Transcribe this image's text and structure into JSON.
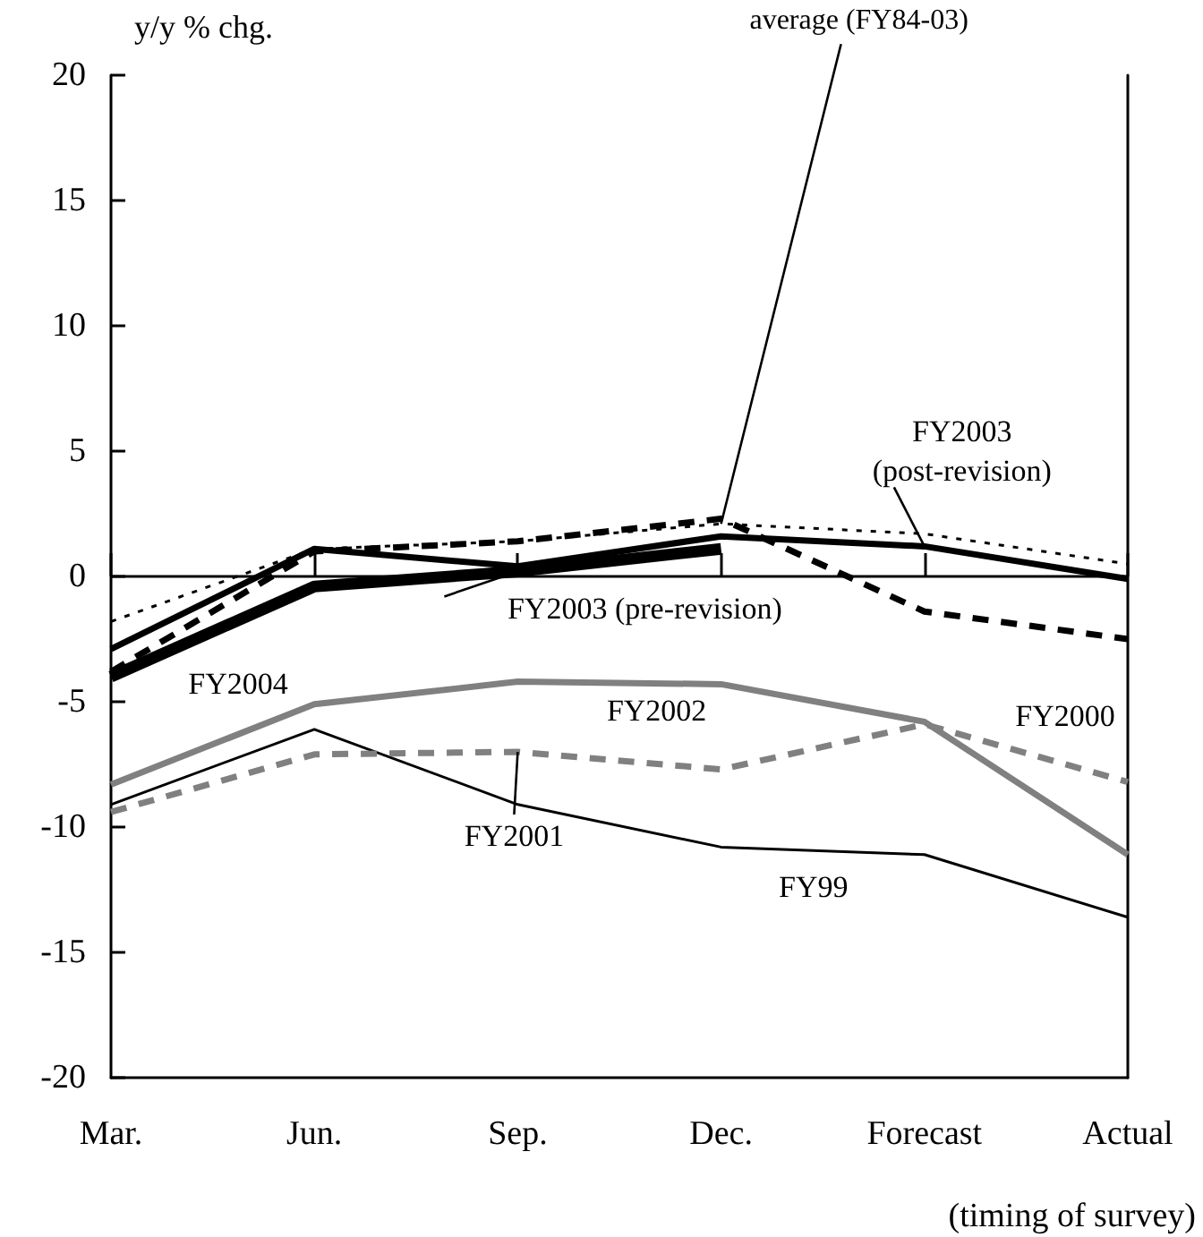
{
  "chart_data": {
    "type": "line",
    "ylabel": "y/y % chg.",
    "xlabel": "(timing of survey)",
    "categories": [
      "Mar.",
      "Jun.",
      "Sep.",
      "Dec.",
      "Forecast",
      "Actual"
    ],
    "ylim": [
      -20,
      20
    ],
    "yticks": [
      -20,
      -15,
      -10,
      -5,
      0,
      5,
      10,
      15,
      20
    ],
    "grid": false,
    "marker": "none",
    "ref_lines": [
      {
        "axis": "y",
        "value": 0,
        "color": "#000000"
      }
    ],
    "series": [
      {
        "color": "#000000",
        "line_style": "dotted",
        "values": [
          -1.8,
          1.1,
          1.4,
          2.1,
          1.7,
          0.5
        ]
      },
      {
        "color": "#000000",
        "line_style": "dashed",
        "values": [
          -3.8,
          1.0,
          1.4,
          2.3,
          -1.4,
          -2.5
        ]
      },
      {
        "color": "#000000",
        "line_style": "solid",
        "values": [
          -2.9,
          1.1,
          0.4,
          1.6,
          1.2,
          -0.1
        ]
      },
      {
        "color": "#000000",
        "line_style": "solid",
        "values": [
          -4.0,
          -0.4,
          0.2,
          1.1,
          null,
          null
        ]
      },
      {
        "color": "#808080",
        "line_style": "solid",
        "values": [
          -8.3,
          -5.1,
          -4.2,
          -4.3,
          -5.8,
          -11.1
        ]
      },
      {
        "color": "#808080",
        "line_style": "dashed",
        "values": [
          -9.4,
          -7.1,
          -7.0,
          -7.7,
          -5.9,
          -8.2
        ]
      },
      {
        "color": "#000000",
        "line_style": "solid",
        "values": [
          -9.1,
          -6.1,
          -9.1,
          -10.8,
          -11.1,
          -13.6
        ]
      }
    ],
    "annotations": [
      {
        "text": "average (FY84-03)",
        "x": "Dec.",
        "y": 2.1
      },
      {
        "text": "FY2003\n(post-revision)",
        "x": "Forecast",
        "y": 1.2
      },
      {
        "text": "FY2003 (pre-revision)",
        "x": "Sep.",
        "y": 0.2
      },
      {
        "text": "FY2004",
        "x": "Mar.",
        "y": -4.2
      },
      {
        "text": "FY2002",
        "x": "Dec.",
        "y": -4.3
      },
      {
        "text": "FY2000",
        "x": "Actual",
        "y": -2.5
      },
      {
        "text": "FY2001",
        "x": "Sep.",
        "y": -7.0
      },
      {
        "text": "FY99",
        "x": "Forecast",
        "y": -11.1
      }
    ]
  }
}
